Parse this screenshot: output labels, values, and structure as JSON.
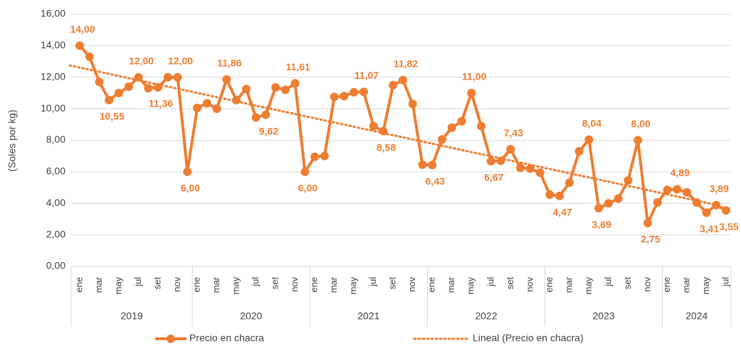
{
  "chart_data": {
    "type": "line",
    "y_label": "(Soles por kg)",
    "ylim": [
      0,
      16
    ],
    "yticks": [
      {
        "value": 0,
        "label": "0,00"
      },
      {
        "value": 2,
        "label": "2,00"
      },
      {
        "value": 4,
        "label": "4,00"
      },
      {
        "value": 6,
        "label": "6,00"
      },
      {
        "value": 8,
        "label": "8,00"
      },
      {
        "value": 10,
        "label": "10,00"
      },
      {
        "value": 12,
        "label": "12,00"
      },
      {
        "value": 14,
        "label": "14,00"
      },
      {
        "value": 16,
        "label": "16,00"
      }
    ],
    "grid": true,
    "categories": [
      "ene",
      null,
      "mar",
      null,
      "may",
      null,
      "jul",
      null,
      "set",
      null,
      "nov",
      null,
      "ene",
      null,
      "mar",
      null,
      "may",
      null,
      "jul",
      null,
      "set",
      null,
      "nov",
      null,
      "ene",
      null,
      "mar",
      null,
      "may",
      null,
      "jul",
      null,
      "set",
      null,
      "nov",
      null,
      "ene",
      null,
      "mar",
      null,
      "may",
      null,
      "jul",
      null,
      "set",
      null,
      "nov",
      null,
      "ene",
      null,
      "mar",
      null,
      "may",
      null,
      "jul",
      null,
      "set",
      null,
      "nov",
      null,
      "ene",
      null,
      "mar",
      null,
      "may",
      null,
      "jul"
    ],
    "groups": [
      {
        "label": "2019",
        "count": 12
      },
      {
        "label": "2020",
        "count": 12
      },
      {
        "label": "2021",
        "count": 12
      },
      {
        "label": "2022",
        "count": 12
      },
      {
        "label": "2023",
        "count": 12
      },
      {
        "label": "2024",
        "count": 7
      }
    ],
    "series": [
      {
        "name": "Precio en chacra",
        "color": "#ed7d31",
        "values": [
          14.0,
          13.3,
          11.7,
          10.55,
          11.0,
          11.4,
          12.0,
          11.3,
          11.36,
          12.0,
          12.0,
          6.0,
          10.05,
          10.35,
          10.0,
          11.86,
          10.55,
          11.25,
          9.45,
          9.62,
          11.35,
          11.2,
          11.61,
          6.0,
          6.95,
          7.0,
          10.75,
          10.8,
          11.05,
          11.07,
          8.9,
          8.58,
          11.5,
          11.82,
          10.3,
          6.45,
          6.43,
          8.05,
          8.8,
          9.2,
          11.0,
          8.9,
          6.67,
          6.7,
          7.43,
          6.25,
          6.2,
          5.95,
          4.55,
          4.47,
          5.3,
          7.3,
          8.04,
          3.69,
          4.0,
          4.3,
          5.45,
          8.0,
          2.75,
          4.05,
          4.85,
          4.89,
          4.7,
          4.05,
          3.41,
          3.89,
          3.55
        ],
        "value_labels": [
          "14,00",
          null,
          null,
          "10,55",
          null,
          null,
          "12,00",
          null,
          "11,36",
          null,
          "12,00",
          "6,00",
          null,
          null,
          null,
          "11,86",
          null,
          null,
          null,
          "9,62",
          null,
          null,
          "11,61",
          "6,00",
          null,
          null,
          null,
          null,
          null,
          "11,07",
          null,
          "8,58",
          null,
          "11,82",
          null,
          null,
          "6,43",
          null,
          null,
          null,
          "11,00",
          null,
          "6,67",
          null,
          "7,43",
          null,
          null,
          null,
          null,
          "4,47",
          null,
          null,
          "8,04",
          "3,69",
          null,
          null,
          null,
          "8,00",
          "2,75",
          null,
          null,
          "4,89",
          null,
          null,
          "3,41",
          "3,89",
          "3,55"
        ]
      }
    ],
    "trendline": {
      "name": "Lineal (Precio en chacra)",
      "color": "#ed7d31",
      "start": 12.75,
      "end": 3.9
    }
  }
}
